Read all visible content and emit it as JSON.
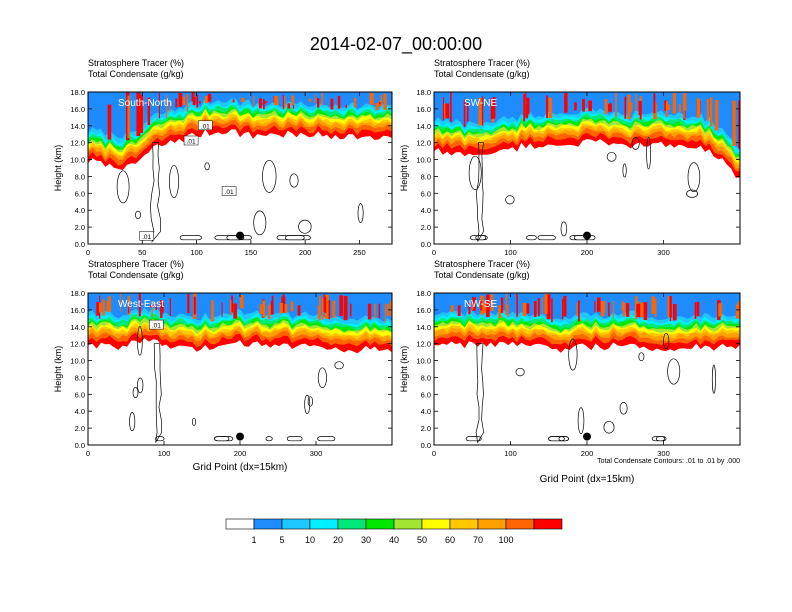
{
  "figure": {
    "title": "2014-02-07_00:00:00",
    "contour_note": "Total Condensate Contours: .01 to .01 by .000"
  },
  "colorbar": {
    "labels": [
      "1",
      "5",
      "10",
      "20",
      "30",
      "40",
      "50",
      "60",
      "70",
      "100"
    ],
    "colors": [
      "#ffffff",
      "#1e8cff",
      "#1ec8ff",
      "#00f0ff",
      "#00e878",
      "#00e800",
      "#a0e632",
      "#ffff00",
      "#ffc800",
      "#ffa000",
      "#ff6400",
      "#ff0000"
    ]
  },
  "chart_data": [
    {
      "type": "heatmap",
      "panel_label": "South-North",
      "title_lines": [
        "Stratosphere Tracer   (%)",
        "Total Condensate   (g/kg)"
      ],
      "xlabel": "",
      "ylabel": "Height (km)",
      "xlim": [
        0,
        280
      ],
      "xticks": [
        "0",
        "50",
        "100",
        "150",
        "200",
        "250"
      ],
      "ylim": [
        0,
        18
      ],
      "yticks": [
        "0.0",
        "2.0",
        "4.0",
        "6.0",
        "8.0",
        "10.0",
        "12.0",
        "14.0",
        "16.0",
        "18.0"
      ],
      "marker_x": 140,
      "marker_y": 1.0,
      "tracer_top_profile_km": [
        [
          0,
          12.0
        ],
        [
          20,
          11.5
        ],
        [
          35,
          11.2
        ],
        [
          45,
          11.8
        ],
        [
          60,
          13.5
        ],
        [
          75,
          14.2
        ],
        [
          90,
          14.8
        ],
        [
          110,
          15.4
        ],
        [
          130,
          15.6
        ],
        [
          150,
          15.0
        ],
        [
          170,
          15.2
        ],
        [
          200,
          15.0
        ],
        [
          230,
          15.0
        ],
        [
          260,
          14.8
        ],
        [
          280,
          14.8
        ]
      ],
      "contour_labels": [
        {
          "x": 108,
          "y": 14.0,
          "text": ".01"
        },
        {
          "x": 95,
          "y": 12.2,
          "text": ".01"
        },
        {
          "x": 130,
          "y": 6.2,
          "text": ".01"
        },
        {
          "x": 54,
          "y": 0.9,
          "text": ".01"
        }
      ]
    },
    {
      "type": "heatmap",
      "panel_label": "SW-NE",
      "title_lines": [
        "Stratosphere Tracer   (%)",
        "Total Condensate   (g/kg)"
      ],
      "xlabel": "",
      "ylabel": "Height (km)",
      "xlim": [
        0,
        400
      ],
      "xticks": [
        "0",
        "100",
        "200",
        "300"
      ],
      "ylim": [
        0,
        18
      ],
      "yticks": [
        "0.0",
        "2.0",
        "4.0",
        "6.0",
        "8.0",
        "10.0",
        "12.0",
        "14.0",
        "16.0",
        "18.0"
      ],
      "marker_x": 200,
      "marker_y": 1.0,
      "tracer_top_profile_km": [
        [
          0,
          13.2
        ],
        [
          40,
          12.8
        ],
        [
          80,
          13.0
        ],
        [
          120,
          13.8
        ],
        [
          160,
          14.0
        ],
        [
          200,
          14.2
        ],
        [
          250,
          13.8
        ],
        [
          300,
          14.0
        ],
        [
          350,
          13.6
        ],
        [
          380,
          12.0
        ],
        [
          395,
          9.8
        ],
        [
          400,
          9.6
        ]
      ],
      "contour_labels": []
    },
    {
      "type": "heatmap",
      "panel_label": "West-East",
      "title_lines": [
        "Stratosphere Tracer   (%)",
        "Total Condensate   (g/kg)"
      ],
      "xlabel": "Grid Point (dx=15km)",
      "ylabel": "Height (km)",
      "xlim": [
        0,
        400
      ],
      "xticks": [
        "0",
        "100",
        "200",
        "300"
      ],
      "ylim": [
        0,
        18
      ],
      "yticks": [
        "0.0",
        "2.0",
        "4.0",
        "6.0",
        "8.0",
        "10.0",
        "12.0",
        "14.0",
        "16.0",
        "18.0"
      ],
      "marker_x": 200,
      "marker_y": 1.0,
      "tracer_top_profile_km": [
        [
          0,
          14.2
        ],
        [
          40,
          14.0
        ],
        [
          80,
          14.4
        ],
        [
          110,
          13.8
        ],
        [
          150,
          13.6
        ],
        [
          200,
          14.2
        ],
        [
          260,
          14.0
        ],
        [
          320,
          13.8
        ],
        [
          360,
          13.6
        ],
        [
          400,
          13.4
        ]
      ],
      "contour_labels": [
        {
          "x": 90,
          "y": 14.2,
          "text": ".01"
        }
      ]
    },
    {
      "type": "heatmap",
      "panel_label": "NW-SE",
      "title_lines": [
        "Stratosphere Tracer   (%)",
        "Total Condensate   (g/kg)"
      ],
      "xlabel": "Grid Point (dx=15km)",
      "ylabel": "Height (km)",
      "xlim": [
        0,
        400
      ],
      "xticks": [
        "0",
        "100",
        "200",
        "300"
      ],
      "ylim": [
        0,
        18
      ],
      "yticks": [
        "0.0",
        "2.0",
        "4.0",
        "6.0",
        "8.0",
        "10.0",
        "12.0",
        "14.0",
        "16.0",
        "18.0"
      ],
      "marker_x": 200,
      "marker_y": 1.0,
      "tracer_top_profile_km": [
        [
          0,
          14.0
        ],
        [
          50,
          14.2
        ],
        [
          100,
          14.0
        ],
        [
          150,
          13.6
        ],
        [
          200,
          13.8
        ],
        [
          250,
          14.0
        ],
        [
          300,
          13.8
        ],
        [
          350,
          13.6
        ],
        [
          400,
          13.8
        ]
      ],
      "contour_labels": []
    }
  ]
}
